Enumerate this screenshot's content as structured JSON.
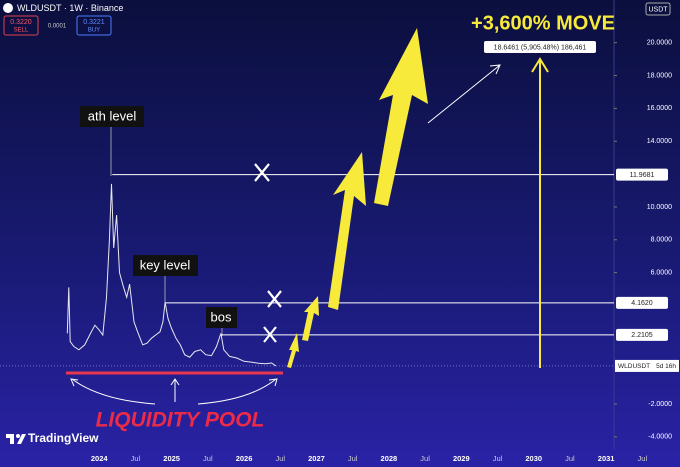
{
  "header": {
    "title": "WLDUSDT · 1W · Binance",
    "sell_price": "0.3220",
    "sell": "SELL",
    "spread": "0.0001",
    "buy_price": "0.3221",
    "buy": "BUY",
    "currency": "USDT"
  },
  "brand": "TradingView",
  "chart_data": {
    "type": "line",
    "x": [
      2023.56,
      2023.58,
      2023.6,
      2023.65,
      2023.72,
      2023.8,
      2023.88,
      2023.94,
      2024.0,
      2024.05,
      2024.1,
      2024.14,
      2024.17,
      2024.2,
      2024.24,
      2024.28,
      2024.33,
      2024.38,
      2024.42,
      2024.48,
      2024.53,
      2024.6,
      2024.66,
      2024.72,
      2024.78,
      2024.84,
      2024.88,
      2024.91,
      2024.95,
      2025.0,
      2025.06,
      2025.12,
      2025.18,
      2025.25,
      2025.32,
      2025.4,
      2025.47,
      2025.55,
      2025.62,
      2025.68,
      2025.72,
      2025.8,
      2025.9,
      2026.0,
      2026.1,
      2026.2,
      2026.3,
      2026.38,
      2026.44
    ],
    "series": [
      {
        "name": "WLDUSDT",
        "color": "#e8e8f0",
        "values": [
          2.3,
          5.1,
          1.8,
          1.5,
          1.3,
          1.6,
          2.3,
          2.8,
          2.5,
          2.2,
          4.5,
          8.0,
          11.4,
          7.5,
          9.5,
          6.0,
          5.2,
          4.5,
          5.3,
          3.0,
          2.4,
          1.6,
          1.7,
          2.0,
          2.2,
          2.4,
          3.0,
          4.2,
          3.2,
          2.6,
          2.0,
          1.6,
          1.0,
          0.85,
          1.2,
          1.3,
          1.0,
          0.95,
          1.5,
          2.3,
          1.3,
          0.9,
          0.8,
          0.6,
          0.55,
          0.48,
          0.45,
          0.5,
          0.32
        ]
      }
    ],
    "xlim": [
      2022.63,
      2032.02
    ],
    "xticks": [
      2024,
      {
        "value": 2024.5,
        "label": "Jul"
      },
      2025,
      {
        "value": 2025.5,
        "label": "Jul"
      },
      2026,
      {
        "value": 2026.5,
        "label": "Jul"
      },
      2027,
      {
        "value": 2027.5,
        "label": "Jul"
      },
      2028,
      {
        "value": 2028.5,
        "label": "Jul"
      },
      2029,
      {
        "value": 2029.5,
        "label": "Jul"
      },
      2030,
      {
        "value": 2030.5,
        "label": "Jul"
      },
      2031,
      {
        "value": 2031.5,
        "label": "Jul"
      }
    ],
    "ylim": [
      -4.8,
      22.6
    ],
    "yticks": [
      {
        "value": 20,
        "label": "20.0000"
      },
      {
        "value": 18,
        "label": "18.0000"
      },
      {
        "value": 16,
        "label": "16.0000"
      },
      {
        "value": 14,
        "label": "14.0000"
      },
      {
        "value": 10,
        "label": "10.0000"
      },
      {
        "value": 8,
        "label": "8.0000"
      },
      {
        "value": 6,
        "label": "6.0000"
      },
      {
        "value": -2,
        "label": "-2.0000"
      },
      {
        "value": -4,
        "label": "-4.0000"
      }
    ],
    "grid": false,
    "levels": [
      {
        "value": 11.9681,
        "from": 2024.18
      },
      {
        "value": 4.162,
        "label": "4.1620",
        "from": 2024.91
      },
      {
        "value": 2.2105,
        "from": 2025.68
      }
    ],
    "countdown": "5d 16h",
    "annotations": {
      "ath": "ath level",
      "key": "key level",
      "bos": "bos",
      "pool": "LIQUIDITY POOL",
      "move": "+3,600% MOVE",
      "target": "18.6461 (5,905.48%) 186,461"
    }
  }
}
